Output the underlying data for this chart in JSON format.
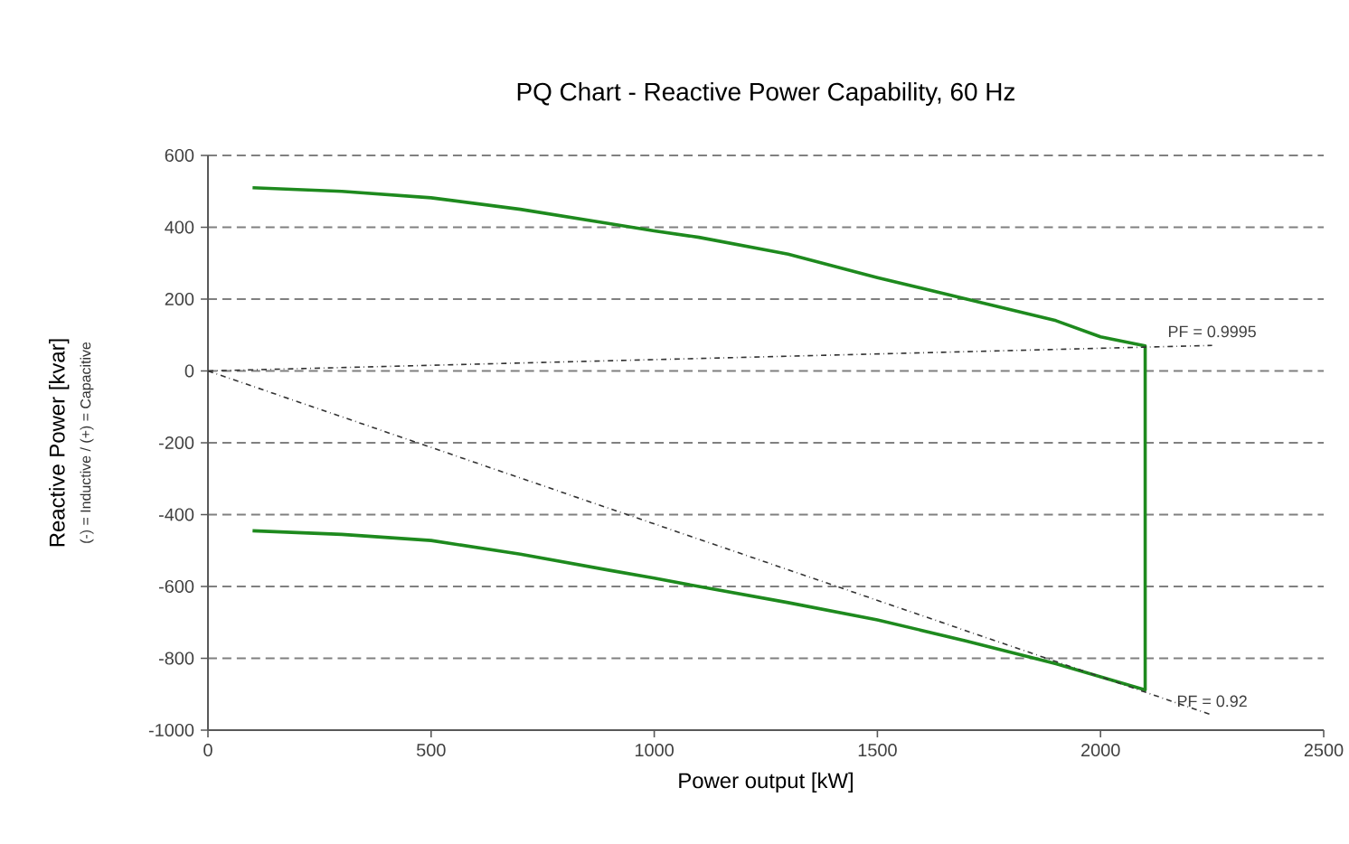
{
  "chart_data": {
    "type": "line",
    "title": "PQ Chart - Reactive Power Capability, 60 Hz",
    "xlabel": "Power output [kW]",
    "ylabel": "Reactive Power [kvar]",
    "annotations": [
      "(-) = Inductive / (+) = Capacitive",
      {
        "text": "PF = 0.9995",
        "x": 2250,
        "y": 71
      },
      {
        "text": "PF = 0.92",
        "x": 2250,
        "y": -958
      }
    ],
    "series": [
      {
        "color": "#1e8a1e",
        "line_style": "solid",
        "x": [
          100,
          300,
          500,
          700,
          900,
          1000,
          1100,
          1300,
          1500,
          1700,
          1900,
          2000,
          2100,
          2100,
          1900,
          1700,
          1500,
          1300,
          1100,
          1000,
          900,
          700,
          500,
          300,
          100
        ],
        "values": [
          510,
          500,
          482,
          450,
          410,
          390,
          372,
          325,
          260,
          200,
          140,
          95,
          70,
          -888,
          -815,
          -752,
          -693,
          -645,
          -600,
          -577,
          -555,
          -510,
          -472,
          -455,
          -445
        ]
      },
      {
        "color": "#333333",
        "line_style": "dashdotted",
        "x": [
          0,
          2250
        ],
        "values": [
          0,
          71
        ]
      },
      {
        "color": "#333333",
        "line_style": "dashdotted",
        "x": [
          0,
          2250
        ],
        "values": [
          0,
          -958
        ]
      }
    ],
    "xlim": [
      0,
      2500
    ],
    "xticks": [
      0,
      500,
      1000,
      1500,
      2000,
      2500
    ],
    "ylim": [
      -1000,
      600
    ],
    "yticks": [
      -1000,
      -800,
      -600,
      -400,
      -200,
      0,
      200,
      400,
      600
    ],
    "grid": "y",
    "marker": "none"
  }
}
